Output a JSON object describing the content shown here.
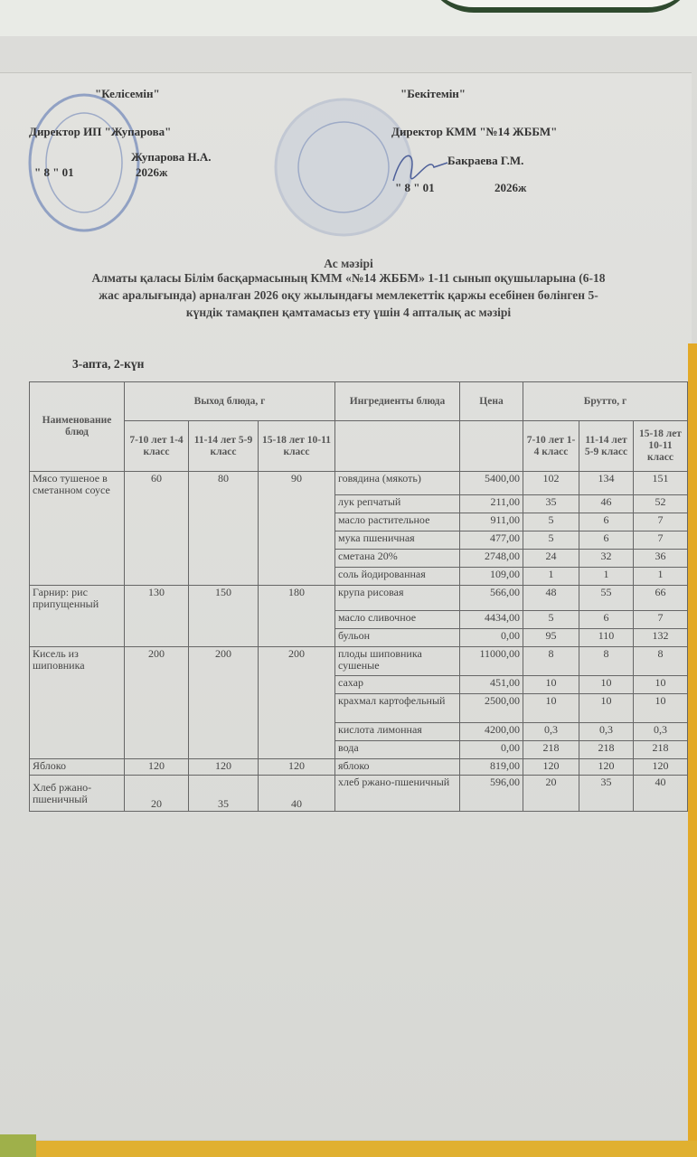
{
  "approval_left": {
    "heading": "\"Келісемін\"",
    "position": "Директор ИП \"Жупарова\"",
    "signer": "Жупарова Н.А.",
    "date_prefix": "\" 8 \" 01",
    "date_year": "2026ж"
  },
  "approval_right": {
    "heading": "\"Бекітемін\"",
    "position": "Директор КММ \"№14 ЖББМ\"",
    "signer": "Бакраева Г.М.",
    "date_prefix": "\" 8 \" 01",
    "date_year": "2026ж"
  },
  "stamp_color": "#6f86b8",
  "title": {
    "line1": "Ас мәзірі",
    "line2": "Алматы қаласы Білім басқармасының КММ «№14 ЖББМ» 1-11 сынып оқушыларына (6-18",
    "line3": "жас аралығында) арналған 2026 оқу жылындағы мемлекеттік қаржы есебінен бөлінген 5-",
    "line4": "күндік тамақпен қамтамасыз ету  үшін 4 апталық ас мәзірі"
  },
  "week_day": "3-апта, 2-күн",
  "table": {
    "headers": {
      "dish_name": "Наименование блюд",
      "yield": "Выход блюда, г",
      "ingredients": "Ингредиенты блюда",
      "price": "Цена",
      "brutto": "Брутто, г",
      "age_groups_yield": [
        "7-10 лет 1-4 класс",
        "11-14 лет 5-9 класс",
        "15-18 лет 10-11 класс"
      ],
      "age_groups_brutto": [
        "7-10 лет 1-4 класс",
        "11-14 лет 5-9 класс",
        "15-18 лет 10-11 класс"
      ]
    },
    "dishes": [
      {
        "name": "Мясо тушеное в сметанном соусе",
        "yields": [
          "60",
          "80",
          "90"
        ],
        "ingredients": [
          {
            "name": "говядина (мякоть)",
            "price": "5400,00",
            "brutto": [
              "102",
              "134",
              "151"
            ]
          },
          {
            "name": "лук репчатый",
            "price": "211,00",
            "brutto": [
              "35",
              "46",
              "52"
            ]
          },
          {
            "name": "масло растительное",
            "price": "911,00",
            "brutto": [
              "5",
              "6",
              "7"
            ]
          },
          {
            "name": "мука пшеничная",
            "price": "477,00",
            "brutto": [
              "5",
              "6",
              "7"
            ]
          },
          {
            "name": "сметана 20%",
            "price": "2748,00",
            "brutto": [
              "24",
              "32",
              "36"
            ]
          },
          {
            "name": "соль йодированная",
            "price": "109,00",
            "brutto": [
              "1",
              "1",
              "1"
            ]
          }
        ]
      },
      {
        "name": "Гарнир: рис припущенный",
        "yields": [
          "130",
          "150",
          "180"
        ],
        "ingredients": [
          {
            "name": "крупа рисовая",
            "price": "566,00",
            "brutto": [
              "48",
              "55",
              "66"
            ]
          },
          {
            "name": "масло сливочное",
            "price": "4434,00",
            "brutto": [
              "5",
              "6",
              "7"
            ]
          },
          {
            "name": "бульон",
            "price": "0,00",
            "brutto": [
              "95",
              "110",
              "132"
            ]
          }
        ]
      },
      {
        "name": "Кисель из шиповника",
        "yields": [
          "200",
          "200",
          "200"
        ],
        "ingredients": [
          {
            "name": "плоды шиповника сушеные",
            "price": "11000,00",
            "brutto": [
              "8",
              "8",
              "8"
            ]
          },
          {
            "name": "сахар",
            "price": "451,00",
            "brutto": [
              "10",
              "10",
              "10"
            ]
          },
          {
            "name": "крахмал картофельный",
            "price": "2500,00",
            "brutto": [
              "10",
              "10",
              "10"
            ]
          },
          {
            "name": "кислота лимонная",
            "price": "4200,00",
            "brutto": [
              "0,3",
              "0,3",
              "0,3"
            ]
          },
          {
            "name": "вода",
            "price": "0,00",
            "brutto": [
              "218",
              "218",
              "218"
            ]
          }
        ]
      },
      {
        "name": "Яблоко",
        "yields": [
          "120",
          "120",
          "120"
        ],
        "ingredients": [
          {
            "name": "яблоко",
            "price": "819,00",
            "brutto": [
              "120",
              "120",
              "120"
            ]
          }
        ]
      },
      {
        "name": "Хлеб ржано-пшеничный",
        "yields": [
          "20",
          "35",
          "40"
        ],
        "ingredients": [
          {
            "name": "хлеб ржано-пшеничный",
            "price": "596,00",
            "brutto": [
              "20",
              "35",
              "40"
            ]
          }
        ]
      }
    ]
  }
}
